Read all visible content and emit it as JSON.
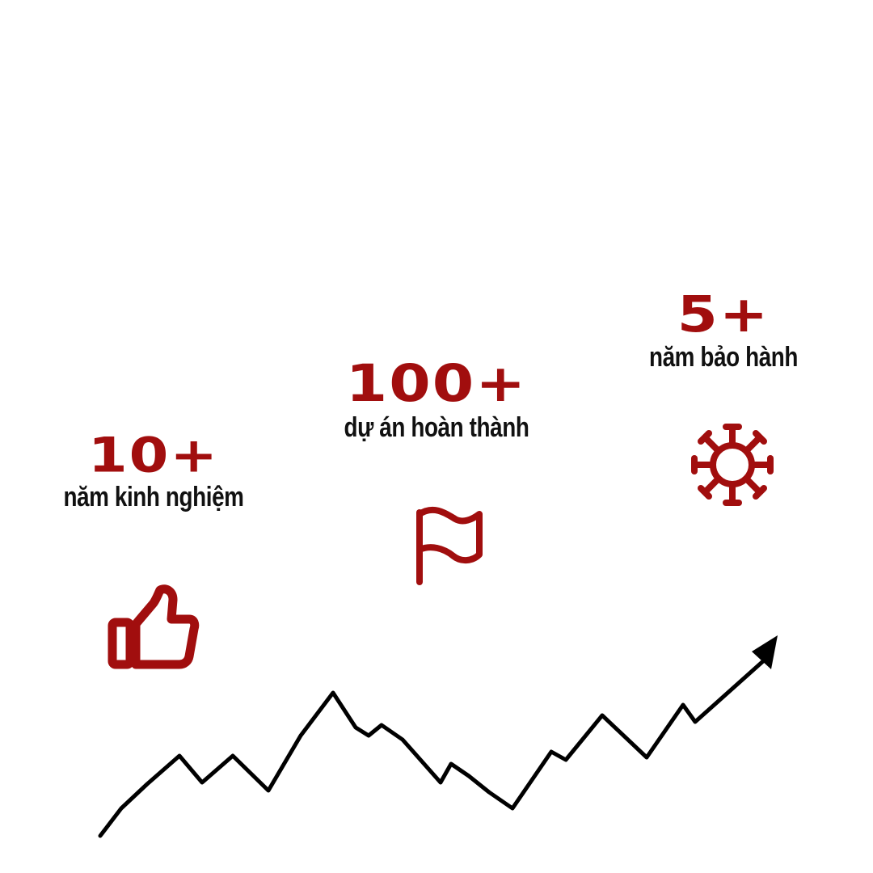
{
  "stats": [
    {
      "value": "10+",
      "label": "năm kinh nghiệm",
      "icon": "thumbs-up-icon"
    },
    {
      "value": "100+",
      "label": "dự án hoàn thành",
      "icon": "flag-icon"
    },
    {
      "value": "5+",
      "label": "năm bảo hành",
      "icon": "virus-gear-icon"
    }
  ],
  "decoration": {
    "line": "rising-line-arrow-icon"
  },
  "colors": {
    "accent": "#a10e0e",
    "text": "#111111",
    "line": "#000000",
    "background": "#ffffff"
  }
}
